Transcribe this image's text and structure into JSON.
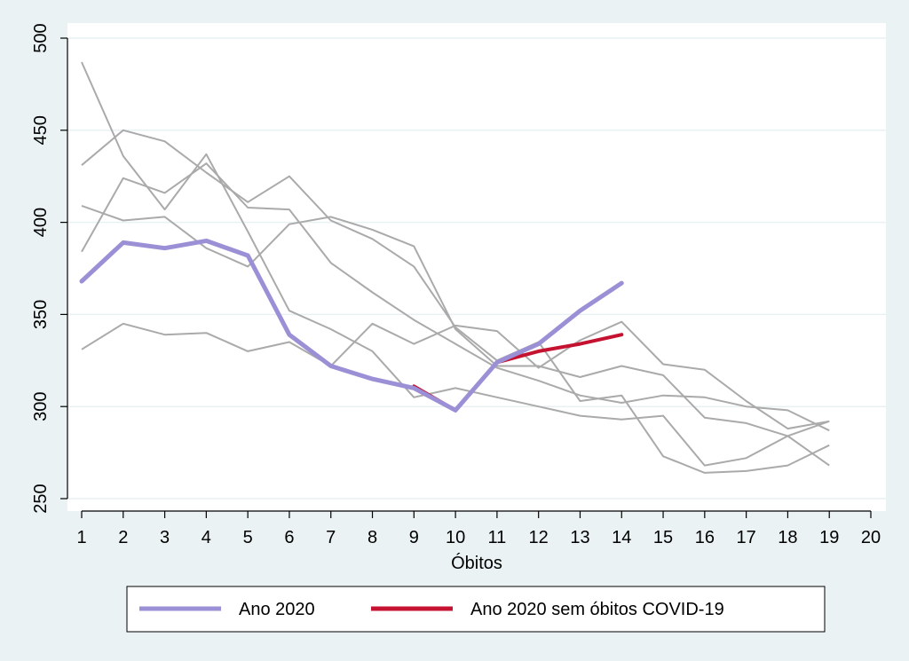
{
  "chart_data": {
    "type": "line",
    "title": "",
    "xlabel": "Óbitos",
    "ylabel": "",
    "xlim": [
      1,
      20
    ],
    "ylim": [
      250,
      500
    ],
    "x_ticks": [
      1,
      2,
      3,
      4,
      5,
      6,
      7,
      8,
      9,
      10,
      11,
      12,
      13,
      14,
      15,
      16,
      17,
      18,
      19,
      20
    ],
    "y_ticks": [
      250,
      300,
      350,
      400,
      450,
      500
    ],
    "grid": true,
    "legend_position": "bottom",
    "background_series": [
      {
        "name": "reference-1",
        "color": "#aaaaaa",
        "x": [
          1,
          2,
          3,
          4,
          5,
          6,
          7,
          8,
          9,
          10,
          11,
          12,
          13,
          14,
          15,
          16,
          17,
          18,
          19
        ],
        "y": [
          487,
          436,
          407,
          437,
          395,
          352,
          342,
          330,
          305,
          310,
          305,
          300,
          295,
          293,
          295,
          268,
          272,
          284,
          292
        ]
      },
      {
        "name": "reference-2",
        "color": "#aaaaaa",
        "x": [
          1,
          2,
          3,
          4,
          5,
          6,
          7,
          8,
          9,
          10,
          11,
          12,
          13,
          14,
          15,
          16,
          17,
          18,
          19
        ],
        "y": [
          431,
          450,
          444,
          427,
          411,
          425,
          401,
          391,
          376,
          343,
          325,
          335,
          303,
          306,
          273,
          264,
          265,
          268,
          279
        ]
      },
      {
        "name": "reference-3",
        "color": "#aaaaaa",
        "x": [
          1,
          2,
          3,
          4,
          5,
          6,
          7,
          8,
          9,
          10,
          11,
          12,
          13,
          14,
          15,
          16,
          17,
          18,
          19
        ],
        "y": [
          409,
          401,
          403,
          386,
          376,
          399,
          403,
          396,
          387,
          342,
          322,
          322,
          316,
          322,
          317,
          294,
          291,
          284,
          268
        ]
      },
      {
        "name": "reference-4",
        "color": "#aaaaaa",
        "x": [
          1,
          2,
          3,
          4,
          5,
          6,
          7,
          8,
          9,
          10,
          11,
          12,
          13,
          14,
          15,
          16,
          17,
          18,
          19
        ],
        "y": [
          384,
          424,
          416,
          432,
          408,
          407,
          378,
          362,
          347,
          334,
          321,
          314,
          306,
          302,
          306,
          305,
          300,
          298,
          287
        ]
      },
      {
        "name": "reference-5",
        "color": "#aaaaaa",
        "x": [
          1,
          2,
          3,
          4,
          5,
          6,
          7,
          8,
          9,
          10,
          11,
          12,
          13,
          14,
          15,
          16,
          17,
          18,
          19
        ],
        "y": [
          331,
          345,
          339,
          340,
          330,
          335,
          322,
          345,
          334,
          344,
          341,
          321,
          336,
          346,
          323,
          320,
          303,
          288,
          292
        ]
      }
    ],
    "series": [
      {
        "name": "Ano 2020 sem óbitos COVID-19",
        "color": "#c41230",
        "width": 4,
        "x": [
          9,
          10,
          11,
          12,
          13,
          14
        ],
        "y": [
          311,
          298,
          324,
          330,
          334,
          339
        ]
      },
      {
        "name": "Ano 2020",
        "color": "#9b8fd6",
        "width": 5,
        "x": [
          1,
          2,
          3,
          4,
          5,
          6,
          7,
          8,
          9,
          10,
          11,
          12,
          13,
          14
        ],
        "y": [
          368,
          389,
          386,
          390,
          382,
          339,
          322,
          315,
          310,
          298,
          324,
          334,
          352,
          367
        ]
      }
    ],
    "legend": [
      {
        "label": "Ano 2020",
        "color": "#9b8fd6"
      },
      {
        "label": "Ano 2020 sem óbitos COVID-19",
        "color": "#c41230"
      }
    ]
  }
}
